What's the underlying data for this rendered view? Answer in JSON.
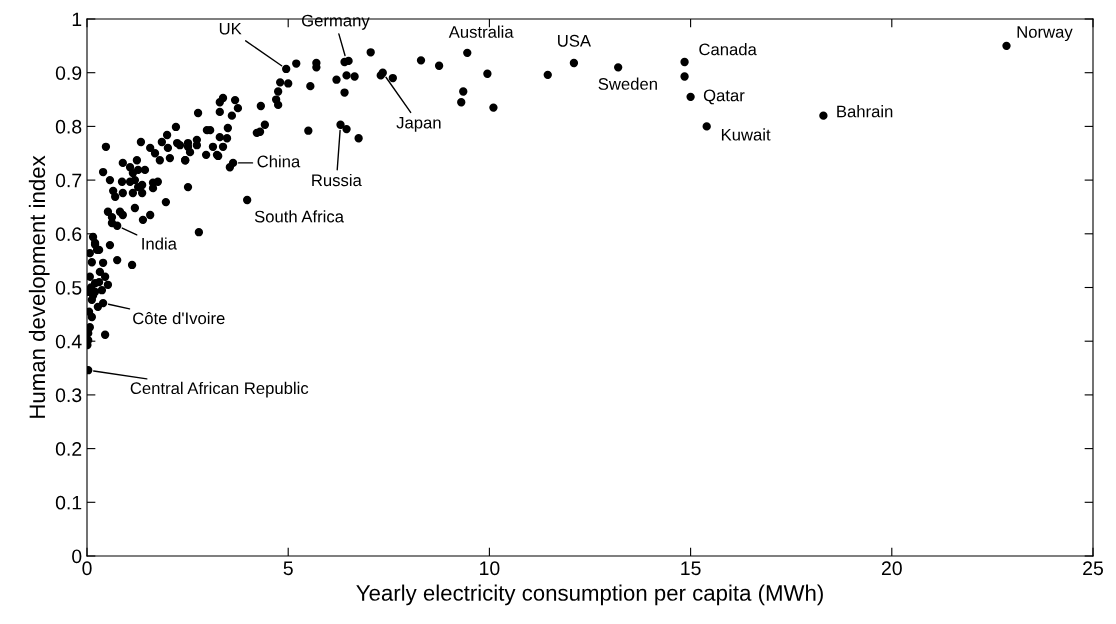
{
  "chart_data": {
    "type": "scatter",
    "xlabel": "Yearly electricity consumption per capita (MWh)",
    "ylabel": "Human development index",
    "xlim": [
      0,
      25
    ],
    "xticks": [
      0,
      5,
      10,
      15,
      20,
      25
    ],
    "ylim": [
      0,
      1
    ],
    "yticks": [
      0,
      {
        "value": 0.1,
        "label": "0.1"
      },
      {
        "value": 0.2,
        "label": "0.2"
      },
      {
        "value": 0.3,
        "label": "0.3"
      },
      {
        "value": 0.4,
        "label": "0.4"
      },
      {
        "value": 0.5,
        "label": "0.5"
      },
      {
        "value": 0.6,
        "label": "0.6"
      },
      {
        "value": 0.7,
        "label": "0.7"
      },
      {
        "value": 0.8,
        "label": "0.8"
      },
      {
        "value": 0.9,
        "label": "0.9"
      },
      1
    ],
    "grid": false,
    "marker": "circle",
    "series": [
      {
        "color": "#000000",
        "x": [
          22.85,
          18.3,
          15.4,
          15.0,
          14.85,
          14.85,
          13.2,
          12.1,
          11.45,
          9.45,
          9.95,
          10.1,
          9.35,
          9.3,
          8.75,
          8.3,
          7.6,
          7.35,
          7.3,
          7.05,
          6.4,
          6.5,
          6.45,
          6.65,
          6.2,
          6.4,
          6.3,
          6.45,
          6.75,
          5.55,
          5.5,
          5.7,
          5.7,
          5.2,
          4.95,
          4.8,
          5.0,
          4.75,
          4.7,
          4.75,
          4.32,
          4.22,
          4.42,
          4.3,
          2.76,
          3.3,
          3.38,
          3.68,
          3.75,
          3.6,
          3.3,
          3.06,
          2.98,
          3.5,
          3.48,
          3.3,
          3.13,
          3.26,
          2.96,
          2.73,
          2.51,
          2.31,
          2.44,
          3.55,
          3.63,
          2.51,
          3.98,
          2.78,
          0.47,
          0.4,
          0.57,
          0.65,
          0.7,
          0.87,
          0.89,
          1.07,
          1.14,
          1.24,
          1.27,
          1.44,
          1.07,
          1.19,
          1.27,
          1.37,
          1.14,
          1.37,
          1.64,
          1.76,
          1.64,
          0.89,
          1.34,
          1.57,
          1.69,
          1.81,
          1.86,
          1.99,
          2.01,
          2.06,
          2.24,
          2.21,
          2.44,
          2.51,
          2.56,
          2.73,
          3.23,
          3.38,
          1.96,
          1.19,
          1.57,
          1.39,
          0.52,
          0.62,
          0.82,
          0.89,
          0.75,
          0.62,
          1.12,
          0.15,
          0.2,
          0.57,
          0.75,
          0.4,
          0.07,
          0.25,
          0.12,
          0.32,
          0.07,
          0.2,
          0.52,
          0.03,
          0.2,
          0.37,
          0.12,
          0.4,
          0.27,
          0.12,
          0.07,
          0.03,
          0.45,
          0.01,
          0.03,
          0.03,
          0.1,
          0.15,
          0.05,
          0.3,
          0.45,
          0.2,
          0.3
        ],
        "values": [
          0.95,
          0.82,
          0.8,
          0.855,
          0.92,
          0.893,
          0.91,
          0.918,
          0.896,
          0.937,
          0.898,
          0.835,
          0.865,
          0.845,
          0.913,
          0.923,
          0.89,
          0.9,
          0.895,
          0.938,
          0.92,
          0.922,
          0.895,
          0.893,
          0.887,
          0.863,
          0.803,
          0.795,
          0.778,
          0.875,
          0.792,
          0.918,
          0.91,
          0.917,
          0.907,
          0.882,
          0.88,
          0.865,
          0.85,
          0.84,
          0.838,
          0.788,
          0.803,
          0.79,
          0.825,
          0.845,
          0.853,
          0.849,
          0.834,
          0.82,
          0.827,
          0.793,
          0.793,
          0.797,
          0.778,
          0.78,
          0.762,
          0.745,
          0.747,
          0.765,
          0.762,
          0.765,
          0.737,
          0.724,
          0.732,
          0.687,
          0.663,
          0.603,
          0.762,
          0.715,
          0.7,
          0.68,
          0.669,
          0.697,
          0.732,
          0.724,
          0.713,
          0.737,
          0.719,
          0.719,
          0.697,
          0.7,
          0.687,
          0.691,
          0.676,
          0.676,
          0.695,
          0.697,
          0.685,
          0.676,
          0.771,
          0.76,
          0.75,
          0.737,
          0.771,
          0.784,
          0.76,
          0.741,
          0.769,
          0.799,
          0.737,
          0.769,
          0.752,
          0.775,
          0.747,
          0.762,
          0.659,
          0.648,
          0.635,
          0.626,
          0.641,
          0.631,
          0.641,
          0.635,
          0.615,
          0.62,
          0.542,
          0.594,
          0.583,
          0.579,
          0.551,
          0.546,
          0.564,
          0.57,
          0.547,
          0.529,
          0.52,
          0.508,
          0.505,
          0.492,
          0.492,
          0.495,
          0.477,
          0.471,
          0.464,
          0.445,
          0.426,
          0.415,
          0.412,
          0.393,
          0.402,
          0.346,
          0.5,
          0.485,
          0.455,
          0.51,
          0.52,
          0.58,
          0.57
        ]
      }
    ],
    "annotations": [
      {
        "text": "Norway",
        "x": 22.85,
        "y": 0.95
      },
      {
        "text": "Bahrain",
        "x": 18.3,
        "y": 0.82
      },
      {
        "text": "Kuwait",
        "x": 15.4,
        "y": 0.8
      },
      {
        "text": "Qatar",
        "x": 15.0,
        "y": 0.855
      },
      {
        "text": "Canada",
        "x": 14.85,
        "y": 0.92
      },
      {
        "text": "Sweden",
        "x": 13.2,
        "y": 0.91
      },
      {
        "text": "USA",
        "x": 12.1,
        "y": 0.918
      },
      {
        "text": "Australia",
        "x": 9.45,
        "y": 0.937
      },
      {
        "text": "South Africa",
        "x": 3.98,
        "y": 0.663
      },
      {
        "text": "UK",
        "x": 4.95,
        "y": 0.907
      },
      {
        "text": "Germany",
        "x": 6.45,
        "y": 0.922
      },
      {
        "text": "Japan",
        "x": 7.35,
        "y": 0.9
      },
      {
        "text": "Russia",
        "x": 6.3,
        "y": 0.803
      },
      {
        "text": "China",
        "x": 3.63,
        "y": 0.732
      },
      {
        "text": "India",
        "x": 0.75,
        "y": 0.615
      },
      {
        "text": "Côte d'Ivoire",
        "x": 0.4,
        "y": 0.471
      },
      {
        "text": "Central African Republic",
        "x": 0.03,
        "y": 0.346
      }
    ]
  }
}
